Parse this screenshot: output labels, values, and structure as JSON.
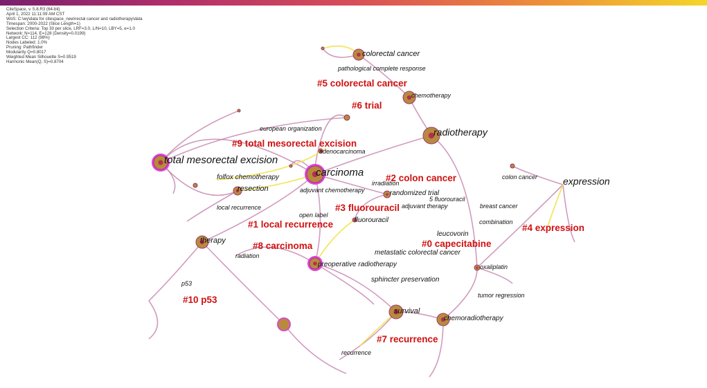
{
  "header": {
    "lines": [
      "CiteSpace, v. 5.8.R3 (64-bit)",
      "April 1, 2022 11:11:09 AM CST",
      "WoS: C:\\wy\\data for citespace_new\\rectal cancer and radiotherapy\\data",
      "Timespan: 2000-2022 (Slice Length=1)",
      "Selection Criteria: Top 30 per slice, LRF=3.0, L/N=10, LBY=5, e=1.0",
      "Network: N=114, E=128 (Density=0.0199)",
      "Largest CC: 112 (98%)",
      "Nodes Labeled: 1.0%",
      "Pruning: Pathfinder",
      "Modularity Q=0.8017",
      "Weighted Mean Silhouette S=0.9519",
      "Harmonic Mean(Q, S)=0.8704"
    ]
  },
  "clusters": [
    "#0 capecitabine",
    "#1 local recurrence",
    "#2 colon cancer",
    "#3 fluorouracil",
    "#4 expression",
    "#5 colorectal cancer",
    "#6 trial",
    "#7 recurrence",
    "#8 carcinoma",
    "#9 total mesorectal excision",
    "#10 p53"
  ],
  "nodes": [
    "total mesorectal excision",
    "carcinoma",
    "radiotherapy",
    "expression",
    "colorectal cancer",
    "pathological complete response",
    "chemotherapy",
    "european organization",
    "adenocarcinoma",
    "folfox chemotherapy",
    "resection",
    "adjuvant chemotherapy",
    "irradiation",
    "randomized trial",
    "5 fluorouracil",
    "adjuvant therapy",
    "colon cancer",
    "breast cancer",
    "local recurrence",
    "open label",
    "fluorouracil",
    "combination",
    "leucovorin",
    "therapy",
    "metastatic colorectal cancer",
    "radiation",
    "preoperative radiotherapy",
    "oxaliplatin",
    "sphincter preservation",
    "p53",
    "tumor regression",
    "survival",
    "chemoradiotherapy",
    "recurrence"
  ]
}
